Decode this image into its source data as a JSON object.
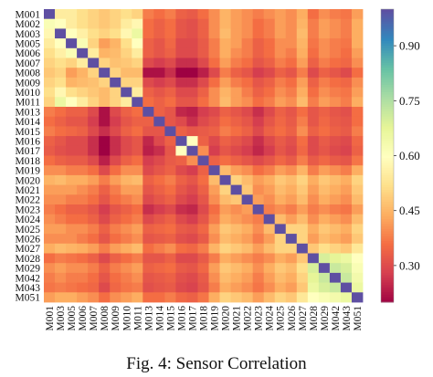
{
  "caption": "Fig. 4: Sensor Correlation",
  "chart_data": {
    "type": "heatmap",
    "title": "",
    "xlabel": "",
    "ylabel": "",
    "row_labels": [
      "M001",
      "M002",
      "M003",
      "M005",
      "M006",
      "M007",
      "M008",
      "M009",
      "M010",
      "M011",
      "M013",
      "M014",
      "M015",
      "M016",
      "M017",
      "M018",
      "M019",
      "M020",
      "M021",
      "M022",
      "M023",
      "M024",
      "M025",
      "M026",
      "M027",
      "M028",
      "M029",
      "M042",
      "M043",
      "M051"
    ],
    "col_labels": [
      "M001",
      "M003",
      "M005",
      "M006",
      "M007",
      "M008",
      "M009",
      "M010",
      "M011",
      "M013",
      "M014",
      "M015",
      "M016",
      "M017",
      "M018",
      "M019",
      "M020",
      "M021",
      "M022",
      "M023",
      "M024",
      "M025",
      "M026",
      "M027",
      "M028",
      "M029",
      "M042",
      "M043",
      "M051"
    ],
    "matrix": [
      [
        1.0,
        0.55,
        0.55,
        0.52,
        0.5,
        0.48,
        0.5,
        0.52,
        0.5,
        0.38,
        0.36,
        0.38,
        0.34,
        0.33,
        0.36,
        0.4,
        0.45,
        0.42,
        0.4,
        0.38,
        0.4,
        0.42,
        0.4,
        0.44,
        0.36,
        0.4,
        0.38,
        0.37,
        0.42
      ],
      [
        0.62,
        0.6,
        0.55,
        0.52,
        0.5,
        0.48,
        0.5,
        0.55,
        0.58,
        0.36,
        0.34,
        0.36,
        0.32,
        0.31,
        0.34,
        0.4,
        0.45,
        0.42,
        0.4,
        0.36,
        0.38,
        0.42,
        0.4,
        0.45,
        0.38,
        0.42,
        0.4,
        0.38,
        0.44
      ],
      [
        0.58,
        1.0,
        0.6,
        0.56,
        0.52,
        0.5,
        0.52,
        0.58,
        0.66,
        0.36,
        0.34,
        0.36,
        0.32,
        0.31,
        0.34,
        0.4,
        0.46,
        0.42,
        0.4,
        0.36,
        0.38,
        0.42,
        0.4,
        0.46,
        0.38,
        0.42,
        0.4,
        0.38,
        0.44
      ],
      [
        0.55,
        0.6,
        1.0,
        0.62,
        0.5,
        0.42,
        0.45,
        0.52,
        0.6,
        0.34,
        0.32,
        0.35,
        0.3,
        0.3,
        0.33,
        0.38,
        0.44,
        0.42,
        0.38,
        0.34,
        0.36,
        0.4,
        0.4,
        0.45,
        0.37,
        0.4,
        0.38,
        0.37,
        0.44
      ],
      [
        0.52,
        0.56,
        0.62,
        1.0,
        0.55,
        0.45,
        0.46,
        0.5,
        0.55,
        0.34,
        0.32,
        0.34,
        0.3,
        0.3,
        0.33,
        0.38,
        0.44,
        0.4,
        0.38,
        0.34,
        0.36,
        0.4,
        0.38,
        0.44,
        0.36,
        0.4,
        0.38,
        0.36,
        0.42
      ],
      [
        0.5,
        0.52,
        0.5,
        0.55,
        1.0,
        0.5,
        0.47,
        0.48,
        0.5,
        0.3,
        0.28,
        0.3,
        0.26,
        0.26,
        0.3,
        0.36,
        0.42,
        0.38,
        0.36,
        0.32,
        0.34,
        0.38,
        0.36,
        0.42,
        0.34,
        0.38,
        0.36,
        0.35,
        0.4
      ],
      [
        0.48,
        0.5,
        0.42,
        0.45,
        0.5,
        1.0,
        0.5,
        0.46,
        0.46,
        0.22,
        0.22,
        0.26,
        0.2,
        0.2,
        0.24,
        0.3,
        0.38,
        0.34,
        0.32,
        0.28,
        0.3,
        0.34,
        0.32,
        0.38,
        0.3,
        0.34,
        0.32,
        0.3,
        0.36
      ],
      [
        0.5,
        0.52,
        0.45,
        0.46,
        0.47,
        0.5,
        1.0,
        0.5,
        0.5,
        0.3,
        0.28,
        0.3,
        0.26,
        0.26,
        0.3,
        0.36,
        0.42,
        0.38,
        0.36,
        0.32,
        0.34,
        0.38,
        0.36,
        0.42,
        0.34,
        0.38,
        0.36,
        0.35,
        0.4
      ],
      [
        0.52,
        0.58,
        0.52,
        0.5,
        0.48,
        0.46,
        0.5,
        1.0,
        0.55,
        0.34,
        0.32,
        0.34,
        0.3,
        0.3,
        0.34,
        0.4,
        0.45,
        0.42,
        0.38,
        0.34,
        0.36,
        0.4,
        0.38,
        0.44,
        0.36,
        0.4,
        0.38,
        0.37,
        0.42
      ],
      [
        0.5,
        0.66,
        0.6,
        0.55,
        0.5,
        0.46,
        0.5,
        0.55,
        1.0,
        0.36,
        0.34,
        0.36,
        0.32,
        0.32,
        0.36,
        0.4,
        0.46,
        0.42,
        0.4,
        0.36,
        0.38,
        0.42,
        0.4,
        0.46,
        0.38,
        0.42,
        0.4,
        0.38,
        0.44
      ],
      [
        0.38,
        0.36,
        0.34,
        0.34,
        0.3,
        0.22,
        0.3,
        0.34,
        0.36,
        1.0,
        0.34,
        0.32,
        0.25,
        0.24,
        0.28,
        0.3,
        0.34,
        0.32,
        0.3,
        0.26,
        0.3,
        0.34,
        0.32,
        0.36,
        0.32,
        0.34,
        0.32,
        0.31,
        0.36
      ],
      [
        0.36,
        0.34,
        0.32,
        0.32,
        0.28,
        0.22,
        0.28,
        0.32,
        0.34,
        0.34,
        1.0,
        0.32,
        0.3,
        0.26,
        0.3,
        0.32,
        0.36,
        0.34,
        0.32,
        0.28,
        0.32,
        0.35,
        0.33,
        0.38,
        0.32,
        0.35,
        0.33,
        0.32,
        0.36
      ],
      [
        0.38,
        0.36,
        0.35,
        0.34,
        0.3,
        0.26,
        0.3,
        0.34,
        0.36,
        0.32,
        0.32,
        1.0,
        0.34,
        0.32,
        0.33,
        0.34,
        0.38,
        0.36,
        0.34,
        0.3,
        0.34,
        0.36,
        0.34,
        0.4,
        0.34,
        0.36,
        0.34,
        0.33,
        0.38
      ],
      [
        0.34,
        0.32,
        0.3,
        0.3,
        0.26,
        0.2,
        0.26,
        0.3,
        0.32,
        0.25,
        0.3,
        0.34,
        1.0,
        0.6,
        0.34,
        0.3,
        0.34,
        0.32,
        0.3,
        0.26,
        0.3,
        0.33,
        0.31,
        0.36,
        0.3,
        0.33,
        0.31,
        0.3,
        0.35
      ],
      [
        0.33,
        0.31,
        0.3,
        0.3,
        0.26,
        0.2,
        0.26,
        0.3,
        0.32,
        0.24,
        0.26,
        0.32,
        0.6,
        1.0,
        0.4,
        0.28,
        0.32,
        0.3,
        0.28,
        0.25,
        0.28,
        0.32,
        0.3,
        0.35,
        0.3,
        0.32,
        0.3,
        0.29,
        0.34
      ],
      [
        0.36,
        0.34,
        0.33,
        0.33,
        0.3,
        0.24,
        0.3,
        0.34,
        0.36,
        0.28,
        0.3,
        0.33,
        0.34,
        0.4,
        1.0,
        0.34,
        0.36,
        0.34,
        0.32,
        0.3,
        0.32,
        0.35,
        0.33,
        0.38,
        0.33,
        0.35,
        0.33,
        0.32,
        0.37
      ],
      [
        0.4,
        0.4,
        0.38,
        0.38,
        0.36,
        0.3,
        0.36,
        0.4,
        0.4,
        0.3,
        0.32,
        0.34,
        0.3,
        0.28,
        0.34,
        1.0,
        0.46,
        0.42,
        0.4,
        0.36,
        0.38,
        0.42,
        0.4,
        0.45,
        0.38,
        0.42,
        0.4,
        0.38,
        0.44
      ],
      [
        0.45,
        0.46,
        0.44,
        0.44,
        0.42,
        0.38,
        0.42,
        0.45,
        0.46,
        0.34,
        0.36,
        0.38,
        0.34,
        0.32,
        0.36,
        0.46,
        1.0,
        0.5,
        0.46,
        0.42,
        0.44,
        0.48,
        0.46,
        0.5,
        0.44,
        0.48,
        0.46,
        0.44,
        0.5
      ],
      [
        0.42,
        0.42,
        0.42,
        0.4,
        0.38,
        0.34,
        0.38,
        0.42,
        0.42,
        0.32,
        0.34,
        0.36,
        0.32,
        0.3,
        0.34,
        0.42,
        0.5,
        1.0,
        0.48,
        0.4,
        0.42,
        0.46,
        0.44,
        0.48,
        0.42,
        0.46,
        0.44,
        0.42,
        0.48
      ],
      [
        0.4,
        0.4,
        0.38,
        0.38,
        0.36,
        0.32,
        0.36,
        0.38,
        0.4,
        0.3,
        0.32,
        0.34,
        0.3,
        0.28,
        0.32,
        0.4,
        0.46,
        0.48,
        1.0,
        0.42,
        0.4,
        0.44,
        0.42,
        0.46,
        0.4,
        0.44,
        0.42,
        0.4,
        0.46
      ],
      [
        0.38,
        0.36,
        0.34,
        0.34,
        0.32,
        0.28,
        0.32,
        0.34,
        0.36,
        0.26,
        0.28,
        0.3,
        0.26,
        0.25,
        0.3,
        0.36,
        0.42,
        0.4,
        0.42,
        1.0,
        0.38,
        0.4,
        0.38,
        0.42,
        0.38,
        0.4,
        0.38,
        0.37,
        0.42
      ],
      [
        0.4,
        0.38,
        0.36,
        0.36,
        0.34,
        0.3,
        0.34,
        0.36,
        0.38,
        0.3,
        0.32,
        0.34,
        0.3,
        0.28,
        0.32,
        0.38,
        0.44,
        0.42,
        0.4,
        0.38,
        1.0,
        0.46,
        0.42,
        0.46,
        0.4,
        0.44,
        0.42,
        0.4,
        0.46
      ],
      [
        0.42,
        0.42,
        0.4,
        0.4,
        0.38,
        0.34,
        0.38,
        0.4,
        0.42,
        0.34,
        0.35,
        0.36,
        0.33,
        0.32,
        0.35,
        0.42,
        0.48,
        0.46,
        0.44,
        0.4,
        0.46,
        1.0,
        0.5,
        0.5,
        0.44,
        0.48,
        0.46,
        0.44,
        0.5
      ],
      [
        0.4,
        0.4,
        0.4,
        0.38,
        0.36,
        0.32,
        0.36,
        0.38,
        0.4,
        0.32,
        0.33,
        0.34,
        0.31,
        0.3,
        0.33,
        0.4,
        0.46,
        0.44,
        0.42,
        0.38,
        0.42,
        0.5,
        1.0,
        0.5,
        0.42,
        0.46,
        0.44,
        0.42,
        0.48
      ],
      [
        0.44,
        0.46,
        0.45,
        0.44,
        0.42,
        0.38,
        0.42,
        0.44,
        0.46,
        0.36,
        0.38,
        0.4,
        0.36,
        0.35,
        0.38,
        0.45,
        0.5,
        0.48,
        0.46,
        0.42,
        0.46,
        0.5,
        0.5,
        1.0,
        0.48,
        0.52,
        0.5,
        0.48,
        0.54
      ],
      [
        0.36,
        0.38,
        0.37,
        0.36,
        0.34,
        0.3,
        0.34,
        0.36,
        0.38,
        0.32,
        0.32,
        0.34,
        0.3,
        0.3,
        0.33,
        0.38,
        0.44,
        0.42,
        0.4,
        0.38,
        0.4,
        0.44,
        0.42,
        0.48,
        1.0,
        0.7,
        0.68,
        0.66,
        0.6
      ],
      [
        0.4,
        0.42,
        0.4,
        0.4,
        0.38,
        0.34,
        0.38,
        0.4,
        0.42,
        0.34,
        0.35,
        0.36,
        0.33,
        0.32,
        0.35,
        0.42,
        0.48,
        0.46,
        0.44,
        0.4,
        0.44,
        0.48,
        0.46,
        0.52,
        0.7,
        1.0,
        0.72,
        0.7,
        0.62
      ],
      [
        0.38,
        0.4,
        0.38,
        0.38,
        0.36,
        0.32,
        0.36,
        0.38,
        0.4,
        0.32,
        0.33,
        0.34,
        0.31,
        0.3,
        0.33,
        0.4,
        0.46,
        0.44,
        0.42,
        0.38,
        0.42,
        0.46,
        0.44,
        0.5,
        0.68,
        0.72,
        1.0,
        0.72,
        0.64
      ],
      [
        0.37,
        0.38,
        0.37,
        0.36,
        0.35,
        0.3,
        0.35,
        0.37,
        0.38,
        0.31,
        0.32,
        0.33,
        0.3,
        0.29,
        0.32,
        0.38,
        0.44,
        0.42,
        0.4,
        0.37,
        0.4,
        0.44,
        0.42,
        0.48,
        0.66,
        0.7,
        0.72,
        1.0,
        0.66
      ],
      [
        0.42,
        0.44,
        0.44,
        0.42,
        0.4,
        0.36,
        0.4,
        0.42,
        0.44,
        0.36,
        0.36,
        0.38,
        0.35,
        0.34,
        0.37,
        0.44,
        0.5,
        0.48,
        0.46,
        0.42,
        0.46,
        0.5,
        0.48,
        0.54,
        0.6,
        0.62,
        0.64,
        0.66,
        1.0
      ]
    ],
    "colormap": "Spectral",
    "color_range": [
      0.2,
      1.0
    ],
    "colorbar_ticks": [
      "0.90",
      "0.75",
      "0.60",
      "0.45",
      "0.30"
    ],
    "colorbar_tick_values": [
      0.9,
      0.75,
      0.6,
      0.45,
      0.3
    ],
    "colors": {
      "low": "#9e0142",
      "high": "#5e4fa2"
    }
  }
}
